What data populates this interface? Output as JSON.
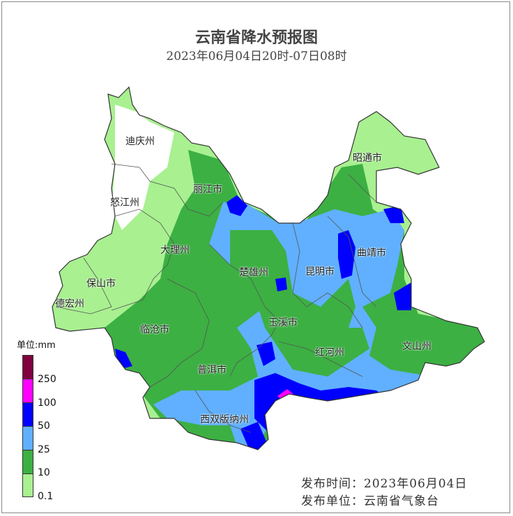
{
  "title": "云南省降水预报图",
  "subtitle": "2023年06月04日20时-07日08时",
  "legend": {
    "unit": "单位:mm",
    "colors": [
      "#800040",
      "#ff00ff",
      "#0000ff",
      "#60b0ff",
      "#3cb043",
      "#a8f090"
    ],
    "labels": [
      "250",
      "100",
      "50",
      "25",
      "10",
      "0.1"
    ]
  },
  "cities": [
    "迪庆州",
    "怒江州",
    "丽江市",
    "昭通市",
    "大理州",
    "曲靖市",
    "楚雄州",
    "昆明市",
    "保山市",
    "德宏州",
    "临沧市",
    "玉溪市",
    "文山州",
    "红河州",
    "普洱市",
    "西双版纳州"
  ],
  "footer": {
    "publish_time": "发布时间：2023年06月04日",
    "publisher": "发布单位：云南省气象台"
  }
}
